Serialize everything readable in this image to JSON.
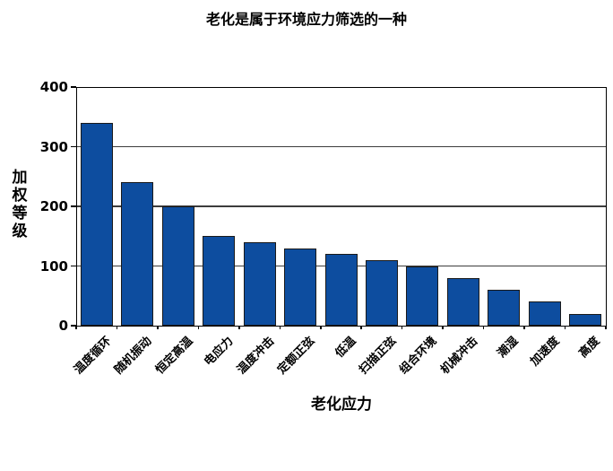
{
  "page": {
    "background": "#ffffff"
  },
  "chart_data": {
    "type": "bar",
    "title": "老化是属于环境应力筛选的一种",
    "xlabel": "老化应力",
    "ylabel": "加权等级",
    "categories": [
      "温度循环",
      "随机振动",
      "恒定高温",
      "电应力",
      "温度冲击",
      "定额正弦",
      "低温",
      "扫描正弦",
      "组合环境",
      "机械冲击",
      "潮湿",
      "加速度",
      "高度"
    ],
    "values": [
      340,
      240,
      200,
      150,
      140,
      130,
      120,
      110,
      100,
      80,
      60,
      40,
      20
    ],
    "ylim": [
      0,
      400
    ],
    "yticks": [
      0,
      100,
      200,
      300,
      400
    ],
    "grid": "horizontal",
    "legend": "none",
    "bar_color": "#0d4d9f",
    "bar_border_color": "#1a1a1a",
    "gridline_color": "#3d3d3d",
    "axis_color": "#000000"
  }
}
